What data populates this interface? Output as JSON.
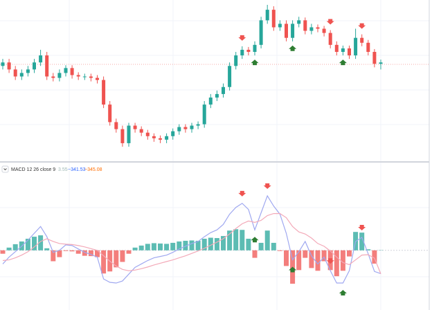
{
  "chart_data": [
    {
      "type": "candlestick",
      "up_color": "#26a69a",
      "down_color": "#ef5350",
      "open": [
        205,
        210,
        200,
        190,
        195,
        200,
        210,
        220,
        190,
        188,
        195,
        202,
        192,
        190,
        190,
        188,
        185,
        150,
        125,
        115,
        95,
        120,
        115,
        110,
        105,
        102,
        100,
        105,
        112,
        118,
        115,
        120,
        122,
        150,
        160,
        165,
        175,
        205,
        220,
        228,
        225,
        235,
        270,
        285,
        260,
        265,
        245,
        265,
        270,
        255,
        260,
        258,
        252,
        235,
        225,
        230,
        220,
        245,
        238,
        225,
        208
      ],
      "high": [
        215,
        215,
        205,
        200,
        205,
        215,
        228,
        225,
        195,
        200,
        206,
        206,
        196,
        194,
        194,
        192,
        190,
        155,
        130,
        120,
        124,
        124,
        119,
        114,
        109,
        106,
        109,
        116,
        122,
        122,
        124,
        126,
        155,
        165,
        170,
        180,
        210,
        225,
        233,
        232,
        240,
        275,
        292,
        290,
        270,
        270,
        270,
        275,
        274,
        265,
        264,
        262,
        256,
        240,
        234,
        234,
        258,
        250,
        242,
        229,
        214
      ],
      "low": [
        200,
        195,
        185,
        185,
        190,
        195,
        205,
        185,
        183,
        183,
        190,
        187,
        185,
        185,
        183,
        180,
        145,
        120,
        110,
        90,
        90,
        110,
        105,
        100,
        97,
        95,
        95,
        100,
        107,
        110,
        110,
        115,
        117,
        145,
        155,
        160,
        170,
        200,
        215,
        220,
        220,
        230,
        265,
        255,
        255,
        240,
        240,
        260,
        250,
        250,
        253,
        247,
        230,
        220,
        220,
        215,
        215,
        233,
        220,
        203,
        200
      ],
      "close": [
        210,
        200,
        190,
        195,
        200,
        210,
        220,
        190,
        188,
        195,
        202,
        192,
        190,
        190,
        188,
        185,
        150,
        125,
        115,
        95,
        120,
        115,
        110,
        105,
        102,
        100,
        105,
        112,
        118,
        115,
        120,
        122,
        150,
        160,
        165,
        175,
        205,
        220,
        228,
        225,
        235,
        270,
        285,
        260,
        265,
        245,
        265,
        270,
        255,
        260,
        258,
        252,
        235,
        225,
        230,
        220,
        245,
        238,
        225,
        208,
        210
      ],
      "sell_signals": [
        38,
        42,
        52,
        57
      ],
      "buy_signals": [
        40,
        46,
        54
      ]
    },
    {
      "type": "macd",
      "title": "MACD 12 26 close 9",
      "series": [
        {
          "kind": "histogram",
          "color": "#26a69a",
          "negative_color": "#ef5350",
          "legend_color": "#9fb8b4",
          "legend_label": "3.55",
          "values": [
            -50,
            40,
            90,
            130,
            170,
            200,
            220,
            30,
            -160,
            -100,
            -10,
            -15,
            -50,
            -80,
            -85,
            -100,
            -340,
            -310,
            -250,
            -170,
            -50,
            40,
            70,
            95,
            105,
            100,
            95,
            110,
            130,
            140,
            145,
            140,
            170,
            185,
            180,
            210,
            290,
            310,
            300,
            170,
            -110,
            110,
            290,
            110,
            -10,
            -230,
            -490,
            -290,
            -110,
            -260,
            -300,
            -160,
            -290,
            -380,
            -300,
            -90,
            270,
            260,
            15,
            -195,
            3.55
          ]
        },
        {
          "kind": "line",
          "color": "#9fa8f0",
          "legend_color": "#2962ff",
          "legend_label": "−341.53",
          "values": [
            -200,
            -100,
            -20,
            60,
            150,
            250,
            350,
            200,
            -30,
            0,
            80,
            70,
            20,
            -30,
            -60,
            -100,
            -420,
            -470,
            -480,
            -450,
            -350,
            -250,
            -200,
            -150,
            -110,
            -90,
            -70,
            -30,
            20,
            60,
            100,
            130,
            200,
            260,
            300,
            380,
            530,
            630,
            690,
            600,
            300,
            550,
            800,
            650,
            530,
            250,
            -140,
            -20,
            130,
            -80,
            -200,
            -100,
            -300,
            -480,
            -480,
            -300,
            130,
            190,
            -50,
            -310,
            -341.53
          ]
        },
        {
          "kind": "line",
          "color": "#f3a9b8",
          "legend_color": "#ff6d00",
          "legend_label": "−345.08",
          "values": [
            -150,
            -140,
            -110,
            -70,
            -20,
            50,
            130,
            170,
            130,
            100,
            90,
            85,
            70,
            50,
            25,
            0,
            -80,
            -160,
            -230,
            -280,
            -300,
            -290,
            -270,
            -245,
            -215,
            -190,
            -165,
            -140,
            -110,
            -80,
            -45,
            -10,
            30,
            75,
            120,
            170,
            240,
            320,
            390,
            430,
            410,
            440,
            510,
            540,
            540,
            480,
            350,
            270,
            240,
            180,
            100,
            60,
            -10,
            -100,
            -180,
            -210,
            -140,
            -70,
            -65,
            -115,
            -345.08
          ]
        }
      ]
    }
  ]
}
